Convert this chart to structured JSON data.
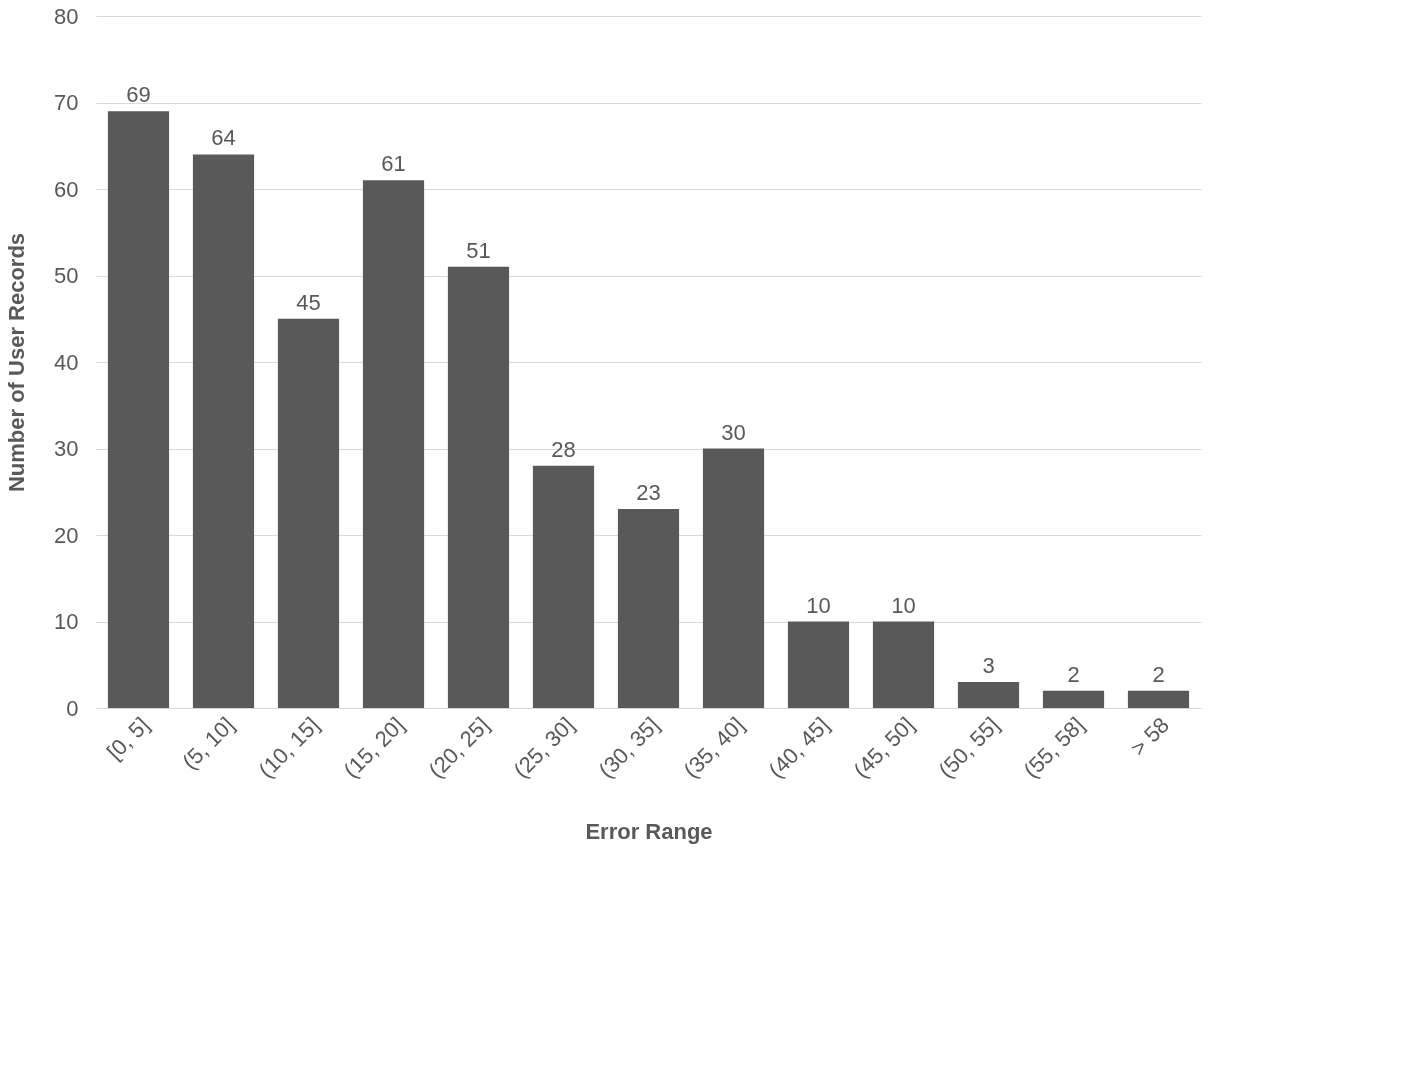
{
  "chart_data": {
    "type": "bar",
    "xlabel": "Error Range",
    "ylabel": "Number of User Records",
    "categories": [
      "[0, 5]",
      "(5, 10]",
      "(10, 15]",
      "(15, 20]",
      "(20, 25]",
      "(25, 30]",
      "(30, 35]",
      "(35, 40]",
      "(40, 45]",
      "(45, 50]",
      "(50, 55]",
      "(55, 58]",
      "> 58"
    ],
    "values": [
      69,
      64,
      45,
      61,
      51,
      28,
      23,
      30,
      10,
      10,
      3,
      2,
      2
    ],
    "color": "#595959",
    "ylim": [
      0,
      80
    ],
    "yticks": [
      0,
      10,
      20,
      30,
      40,
      50,
      60,
      70,
      80
    ],
    "grid": "y",
    "data_labels": true
  }
}
